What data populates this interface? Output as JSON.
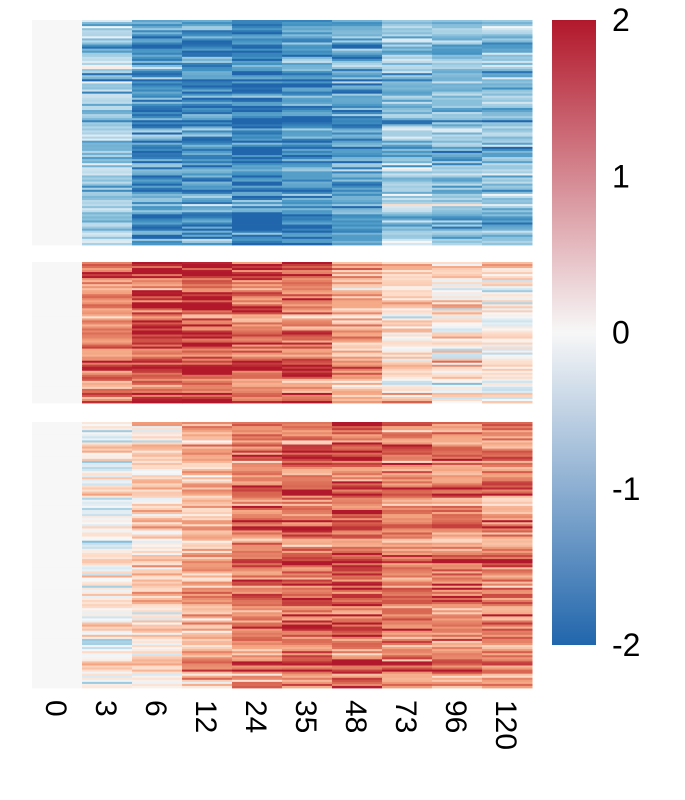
{
  "chart_data": {
    "type": "heatmap",
    "title": "",
    "xlabel": "",
    "ylabel": "",
    "x": [
      "0",
      "3",
      "6",
      "12",
      "24",
      "35",
      "48",
      "73",
      "96",
      "120"
    ],
    "value_range": [
      -2,
      2
    ],
    "colormap": "RdBu_r",
    "colors": {
      "low": "#2166ac",
      "mid": "#f7f7f7",
      "high": "#b2182b"
    },
    "colorbar": {
      "ticks": [
        "2",
        "1",
        "0",
        "-1",
        "-2"
      ],
      "values": [
        2,
        1,
        0,
        -1,
        -2
      ],
      "placement": "right"
    },
    "clusters": [
      {
        "rows": 110,
        "mean_profile": [
          0,
          -0.9,
          -1.6,
          -1.6,
          -1.8,
          -1.6,
          -1.5,
          -1.0,
          -1.1,
          -1.1
        ]
      },
      {
        "rows": 70,
        "mean_profile": [
          0,
          1.3,
          1.6,
          1.7,
          1.5,
          1.4,
          0.9,
          0.4,
          0.2,
          0.1
        ]
      },
      {
        "rows": 130,
        "mean_profile": [
          0,
          0.1,
          0.4,
          0.9,
          1.4,
          1.5,
          1.6,
          1.3,
          1.3,
          1.3
        ]
      }
    ]
  }
}
